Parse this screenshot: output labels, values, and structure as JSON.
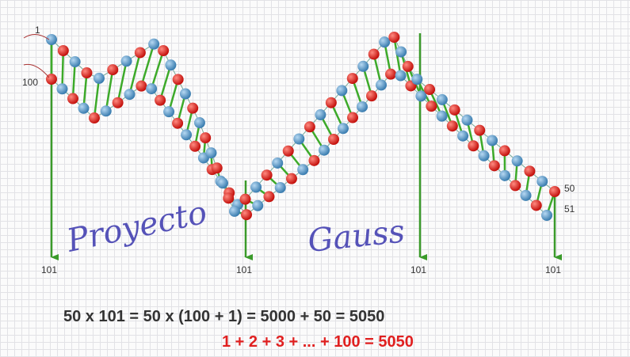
{
  "chain_labels": {
    "left_top": "1",
    "left_bottom": "100",
    "right_top": "50",
    "right_bottom": "51"
  },
  "arrow_labels": [
    "101",
    "101",
    "101",
    "101"
  ],
  "words": [
    "Proyecto",
    "Gauss"
  ],
  "equations": [
    "50 x 101 = 50 x (100 + 1) = 5000 + 50 = 5050",
    "1 + 2 + 3 + ... + 100 = 5050"
  ]
}
